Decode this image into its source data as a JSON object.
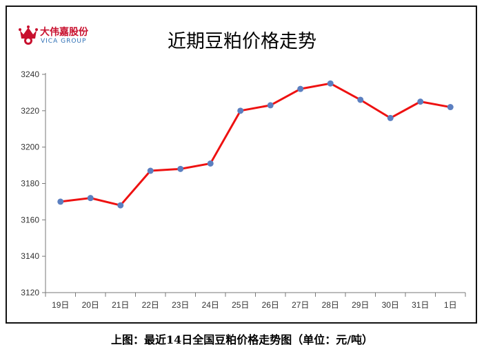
{
  "logo": {
    "brand_cn": "大伟嘉股份",
    "brand_en": "VICA GROUP",
    "brand_color": "#c8102e",
    "brand_en_color": "#2e6fb5",
    "icon": "crown-icon"
  },
  "caption": "上图：最近14日全国豆粕价格走势图（单位：元/吨）",
  "colors": {
    "line": "#ee1111",
    "marker": "#5b7fc0",
    "axis": "#777777"
  },
  "chart_data": {
    "type": "line",
    "title": "近期豆粕价格走势",
    "xlabel": "",
    "ylabel": "",
    "categories": [
      "19日",
      "20日",
      "21日",
      "22日",
      "23日",
      "24日",
      "25日",
      "26日",
      "27日",
      "28日",
      "29日",
      "30日",
      "31日",
      "1日"
    ],
    "series": [
      {
        "values": [
          3170,
          3172,
          3168,
          3187,
          3188,
          3191,
          3220,
          3223,
          3232,
          3235,
          3226,
          3216,
          3225,
          3222
        ]
      }
    ],
    "ylim": [
      3120,
      3240
    ],
    "yticks": [
      3120,
      3140,
      3160,
      3180,
      3200,
      3220,
      3240
    ],
    "grid": false,
    "legend": "none"
  }
}
